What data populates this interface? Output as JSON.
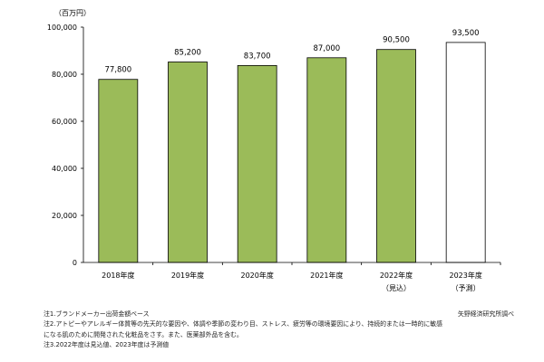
{
  "chart_data": {
    "type": "bar",
    "title": "",
    "unit_label": "（百万円）",
    "categories": [
      "2018年度",
      "2019年度",
      "2020年度",
      "2021年度",
      "2022年度",
      "2023年度"
    ],
    "category_sublabels": [
      "",
      "",
      "",
      "",
      "（見込）",
      "（予測）"
    ],
    "values": [
      77800,
      85200,
      83700,
      87000,
      90500,
      93500
    ],
    "value_labels": [
      "77,800",
      "85,200",
      "83,700",
      "87,000",
      "90,500",
      "93,500"
    ],
    "yticks": [
      "0",
      "20,000",
      "40,000",
      "60,000",
      "80,000",
      "100,000"
    ],
    "ylim": [
      0,
      100000
    ],
    "bar_styles": [
      "actual",
      "actual",
      "actual",
      "actual",
      "actual",
      "forecast"
    ],
    "colors": {
      "bar_fill": "#9bbb59",
      "forecast_fill": "#ffffff",
      "bar_stroke": "#000000"
    },
    "grid": false,
    "legend": "none"
  },
  "notes": [
    "注1.ブランドメーカー出荷金額ベース",
    "注2.アトピーやアレルギー体質等の先天的な要因や、体調や季節の変わり目、ストレス、疲労等の環境要因により、持続的または一時的に敏感",
    "になる肌のために開発された化粧品をさす。また、医薬部外品を含む。",
    "注3.2022年度は見込値、2023年度は予測値"
  ],
  "source": "矢野経済研究所調べ"
}
